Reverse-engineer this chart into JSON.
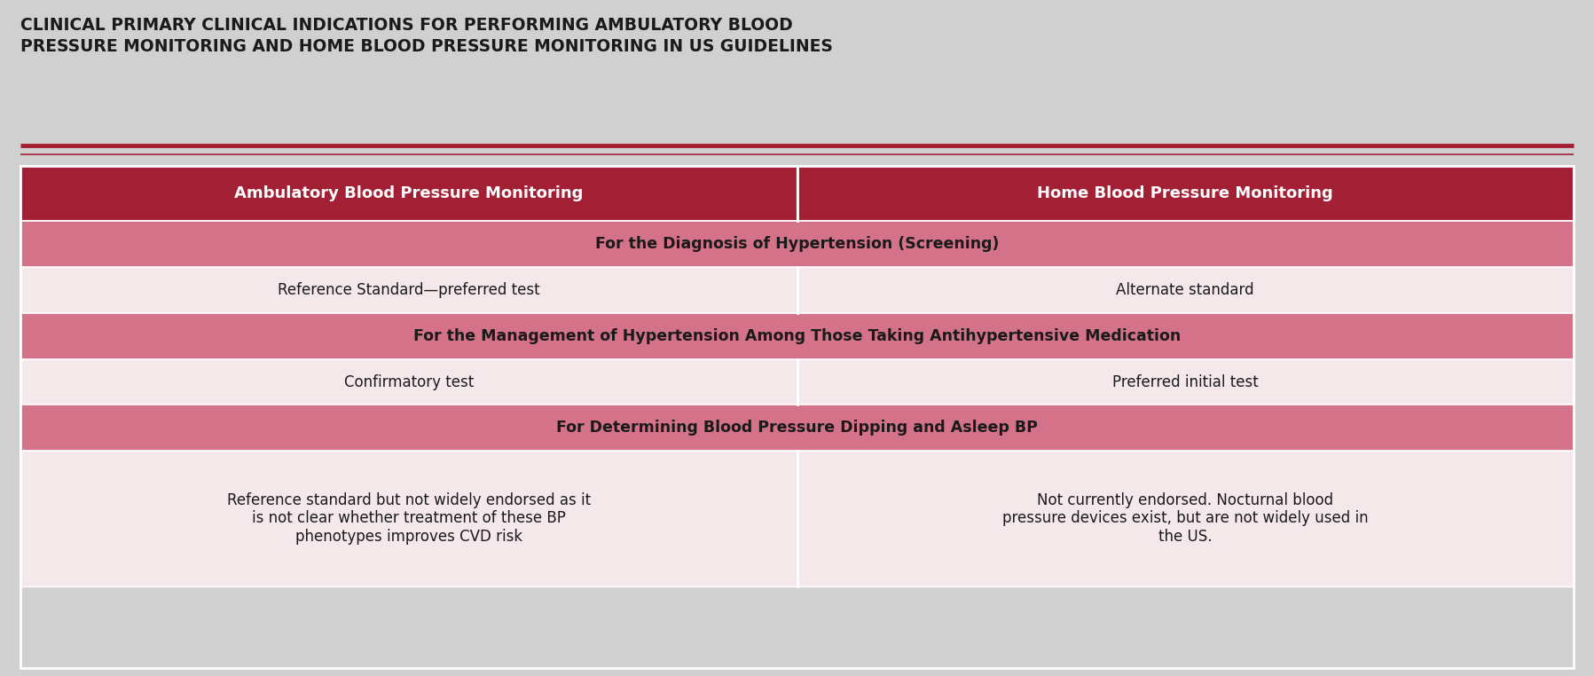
{
  "title_line1": "CLINICAL PRIMARY CLINICAL INDICATIONS FOR PERFORMING AMBULATORY BLOOD",
  "title_line2": "PRESSURE MONITORING AND HOME BLOOD PRESSURE MONITORING IN US GUIDELINES",
  "title_color": "#1a1a1a",
  "title_fontsize": 13.5,
  "bg_color": "#d0d0d0",
  "header_bg": "#a31f34",
  "header_text_color": "#ffffff",
  "section_bg": "#d4728a",
  "section_text_color": "#1a1a1a",
  "row_bg_light": "#f5e8eb",
  "col1_header": "Ambulatory Blood Pressure Monitoring",
  "col2_header": "Home Blood Pressure Monitoring",
  "divider_color_thick": "#a31f34",
  "divider_color_thin": "#a31f34",
  "rows": [
    {
      "type": "section",
      "text": "For the Diagnosis of Hypertension (Screening)"
    },
    {
      "type": "data",
      "col1": "Reference Standard—preferred test",
      "col2": "Alternate standard"
    },
    {
      "type": "section",
      "text": "For the Management of Hypertension Among Those Taking Antihypertensive Medication"
    },
    {
      "type": "data",
      "col1": "Confirmatory test",
      "col2": "Preferred initial test"
    },
    {
      "type": "section",
      "text": "For Determining Blood Pressure Dipping and Asleep BP"
    },
    {
      "type": "data",
      "col1": "Reference standard but not widely endorsed as it\nis not clear whether treatment of these BP\nphenotypes improves CVD risk",
      "col2": "Not currently endorsed. Nocturnal blood\npressure devices exist, but are not widely used in\nthe US."
    }
  ]
}
